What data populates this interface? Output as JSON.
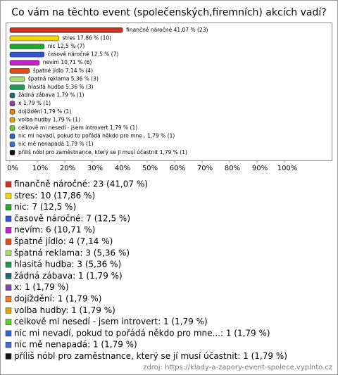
{
  "chart_data": {
    "type": "bar",
    "orientation": "horizontal",
    "title": "Co vám na těchto event (společenských,firemních) akcích vadí?",
    "categories": [
      "finančně náročné",
      "stres",
      "nic",
      "časově náročné",
      "nevím",
      "špatné jídlo",
      "špatná reklama",
      "hlasitá hudba",
      "žádná zábava",
      "x",
      "dojíždění",
      "volba hudby",
      "celkově mi nesedí - jsem introvert",
      "nic mi nevadí, pokud to pořádá někdo pro mne..",
      "nic mě nenapadá",
      "příliš nóbl pro zaměstnance, který se jí musí účastnit"
    ],
    "values": [
      41.07,
      17.86,
      12.5,
      12.5,
      10.71,
      7.14,
      5.36,
      5.36,
      1.79,
      1.79,
      1.79,
      1.79,
      1.79,
      1.79,
      1.79,
      1.79
    ],
    "value_labels": [
      "41,07 %",
      "17,86 %",
      "12,5 %",
      "12,5 %",
      "10,71 %",
      "7,14 %",
      "5,36 %",
      "5,36 %",
      "1,79 %",
      "1,79 %",
      "1,79 %",
      "1,79 %",
      "1,79 %",
      "1,79 %",
      "1,79 %",
      "1,79 %"
    ],
    "count_labels": [
      "(23)",
      "(10)",
      "(7)",
      "(7)",
      "(6)",
      "(4)",
      "(3)",
      "(3)",
      "(1)",
      "(1)",
      "(1)",
      "(1)",
      "(1)",
      "(1)",
      "(1)",
      "(1)"
    ],
    "colors": [
      "#c8321e",
      "#f5d800",
      "#1fa82a",
      "#3352d8",
      "#c421c8",
      "#e04a14",
      "#a9dd6e",
      "#1f9a58",
      "#1f6a6a",
      "#8a44b0",
      "#ee7a20",
      "#d9a800",
      "#5fcc2e",
      "#2f64cc",
      "#3a6ed0",
      "#111111"
    ],
    "legend": [
      "finančně náročné: 23 (41,07 %)",
      "stres: 10 (17,86 %)",
      "nic: 7 (12,5 %)",
      "časově náročné: 7 (12,5 %)",
      "nevím: 6 (10,71 %)",
      "špatné jídlo: 4 (7,14 %)",
      "špatná reklama: 3 (5,36 %)",
      "hlasitá hudba: 3 (5,36 %)",
      "žádná zábava: 1 (1,79 %)",
      "x: 1 (1,79 %)",
      "dojíždění: 1 (1,79 %)",
      "volba hudby: 1 (1,79 %)",
      "celkově mi nesedí - jsem introvert: 1 (1,79 %)",
      "nic mi nevadí, pokud to pořádá někdo pro mne...: 1 (1,79 %)",
      "nic mě nenapadá: 1 (1,79 %)",
      "příliš nóbl pro zaměstnance, který se jí musí účastnit: 1 (1,79 %)"
    ],
    "xlim": [
      0,
      100
    ],
    "xticks": [
      {
        "value": 0,
        "label": "0%"
      },
      {
        "value": 10,
        "label": "10%"
      },
      {
        "value": 20,
        "label": "20%"
      },
      {
        "value": 30,
        "label": "30%"
      },
      {
        "value": 40,
        "label": "40%"
      },
      {
        "value": 50,
        "label": "50%"
      },
      {
        "value": 60,
        "label": "60%"
      },
      {
        "value": 70,
        "label": "70%"
      },
      {
        "value": 80,
        "label": "80%"
      },
      {
        "value": 90,
        "label": "90%"
      },
      {
        "value": 100,
        "label": "100%"
      }
    ],
    "source": "zdroj: https://klady-a-zapory-event-spolece.vyplnto.cz"
  }
}
